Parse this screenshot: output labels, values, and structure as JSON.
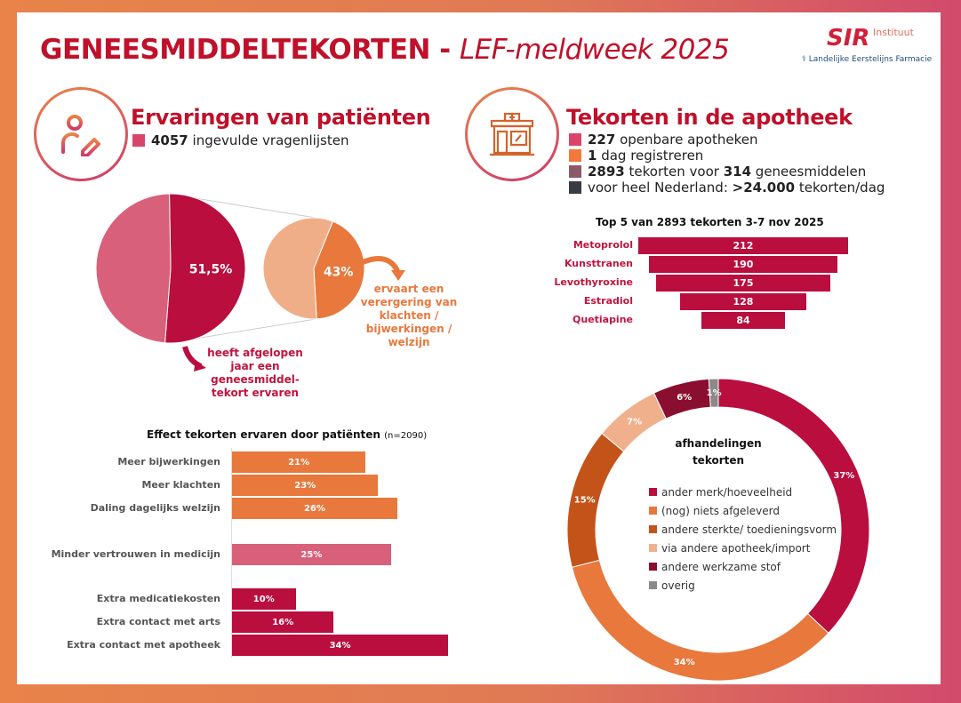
{
  "header": {
    "title_bold": "GENEESMIDDELTEKORTEN -",
    "title_italic": "LEF-meldweek 2025",
    "logo_sir": "SIR",
    "logo_sir_sub": "Instituut",
    "logo_lef": "Landelijke Eerstelijns Farmacie"
  },
  "patients": {
    "heading": "Ervaringen van patiënten",
    "icon": "person-edit-icon",
    "stat_value": "4057",
    "stat_text": "ingevulde vragenlijsten",
    "stat_color": "#D9456A",
    "annotation_main": "heeft afgelopen jaar een geneesmiddel-tekort ervaren",
    "annotation_sub": "ervaart een verergering van klachten / bijwerkingen / welzijn"
  },
  "pharmacy": {
    "heading": "Tekorten in de apotheek",
    "icon": "pharmacy-building-icon",
    "stats": [
      {
        "bold": "227",
        "text": "openbare apotheken",
        "color": "#D9456A"
      },
      {
        "bold": "1",
        "text": "dag registreren",
        "color": "#F07A3A"
      },
      {
        "bold": "2893",
        "text": "tekorten voor",
        "bold2": "314",
        "text2": "geneesmiddelen",
        "color": "#8B5A66"
      },
      {
        "pre": "voor heel Nederland:",
        "bold": ">24.000",
        "text": "tekorten/dag",
        "color": "#3A3A45"
      }
    ]
  },
  "chart_data": [
    {
      "type": "pie",
      "values": [
        51.5,
        48.5
      ],
      "labels": [
        "51,5%",
        ""
      ],
      "colors": [
        "#B90E3E",
        "#D9607A"
      ]
    },
    {
      "type": "pie",
      "values": [
        43,
        57
      ],
      "labels": [
        "43%",
        ""
      ],
      "colors": [
        "#E8783C",
        "#F0AE88"
      ]
    },
    {
      "type": "bar",
      "orientation": "horizontal",
      "title": "Top 5 van 2893 tekorten 3-7 nov 2025",
      "categories": [
        "Metoprolol",
        "Kunsttranen",
        "Levothyroxine",
        "Estradiol",
        "Quetiapine"
      ],
      "values": [
        212,
        190,
        175,
        128,
        84
      ],
      "data_labels": [
        "212",
        "190",
        "175",
        "128",
        "84"
      ],
      "color": "#B90E3E"
    },
    {
      "type": "bar",
      "orientation": "horizontal",
      "title": "Effect tekorten ervaren door patiënten",
      "subtitle": "(n=2090)",
      "categories": [
        "Meer bijwerkingen",
        "Meer klachten",
        "Daling dagelijks welzijn",
        "Minder vertrouwen in medicijn",
        "Extra medicatiekosten",
        "Extra contact met arts",
        "Extra contact met apotheek"
      ],
      "values": [
        21,
        23,
        26,
        25,
        10,
        16,
        34
      ],
      "data_labels": [
        "21%",
        "23%",
        "26%",
        "25%",
        "10%",
        "16%",
        "34%"
      ],
      "colors": [
        "#E8783C",
        "#E8783C",
        "#E8783C",
        "#D9607A",
        "#B90E3E",
        "#B90E3E",
        "#B90E3E"
      ]
    },
    {
      "type": "pie",
      "donut": true,
      "title": "afhandelingen tekorten",
      "legend": "center",
      "categories": [
        "ander merk/hoeveelheid",
        "(nog) niets afgeleverd",
        "andere sterkte/ toedieningsvorm",
        "via andere apotheek/import",
        "andere werkzame stof",
        "overig"
      ],
      "values": [
        37,
        34,
        15,
        7,
        6,
        1
      ],
      "labels": [
        "37%",
        "34%",
        "15%",
        "7%",
        "6%",
        "1%"
      ],
      "colors": [
        "#B90E3E",
        "#E8783C",
        "#C4531A",
        "#F0B08C",
        "#8A0E30",
        "#8A8A8A"
      ]
    }
  ]
}
